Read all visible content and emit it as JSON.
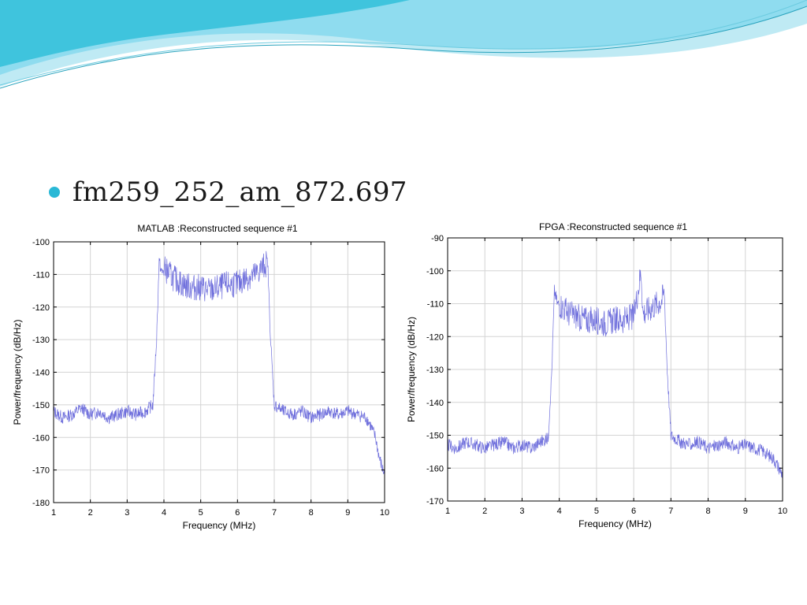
{
  "slide": {
    "bullet_text": "fm259_252_am_872.697",
    "bullet_color": "#29b8d6",
    "accent_colors": [
      "#3fc4dd",
      "#8fdcef",
      "#bfeaf4"
    ]
  },
  "chart_data": [
    {
      "type": "line",
      "title": "MATLAB :Reconstructed sequence #1",
      "xlabel": "Frequency (MHz)",
      "ylabel": "Power/frequency (dB/Hz)",
      "xlim": [
        1,
        10
      ],
      "ylim": [
        -180,
        -100
      ],
      "xticks": [
        1,
        2,
        3,
        4,
        5,
        6,
        7,
        8,
        9,
        10
      ],
      "yticks": [
        -180,
        -170,
        -160,
        -150,
        -140,
        -130,
        -120,
        -110,
        -100
      ],
      "grid": true,
      "line_color": "#6f6fdc",
      "series": [
        {
          "x": [
            1.0,
            1.25,
            1.5,
            1.75,
            2.0,
            2.25,
            2.5,
            2.75,
            3.0,
            3.25,
            3.5,
            3.7,
            3.8,
            3.87,
            3.95,
            4.0,
            4.25,
            4.5,
            4.75,
            5.0,
            5.25,
            5.5,
            5.75,
            6.0,
            6.25,
            6.5,
            6.75,
            6.82,
            6.9,
            7.0,
            7.25,
            7.5,
            7.75,
            8.0,
            8.25,
            8.5,
            8.75,
            9.0,
            9.25,
            9.5,
            9.6,
            9.75,
            9.85,
            9.95,
            10.0
          ],
          "y": [
            -152,
            -154,
            -153,
            -151,
            -153,
            -152,
            -154,
            -153,
            -152,
            -153,
            -152,
            -150,
            -130,
            -106,
            -110,
            -108,
            -111,
            -113,
            -114,
            -114,
            -115,
            -114,
            -113,
            -113,
            -111,
            -110,
            -107,
            -106,
            -130,
            -150,
            -152,
            -153,
            -152,
            -154,
            -153,
            -152,
            -153,
            -152,
            -153,
            -154,
            -156,
            -160,
            -166,
            -170,
            -171
          ]
        }
      ]
    },
    {
      "type": "line",
      "title": "FPGA :Reconstructed sequence #1",
      "xlabel": "Frequency (MHz)",
      "ylabel": "Power/frequency (dB/Hz)",
      "xlim": [
        1,
        10
      ],
      "ylim": [
        -170,
        -90
      ],
      "xticks": [
        1,
        2,
        3,
        4,
        5,
        6,
        7,
        8,
        9,
        10
      ],
      "yticks": [
        -170,
        -160,
        -150,
        -140,
        -130,
        -120,
        -110,
        -100,
        -90
      ],
      "grid": true,
      "line_color": "#6f6fdc",
      "series": [
        {
          "x": [
            1.0,
            1.25,
            1.5,
            1.75,
            2.0,
            2.25,
            2.5,
            2.75,
            3.0,
            3.25,
            3.5,
            3.7,
            3.8,
            3.87,
            3.95,
            4.0,
            4.25,
            4.5,
            4.75,
            5.0,
            5.25,
            5.5,
            5.75,
            6.0,
            6.2,
            6.25,
            6.5,
            6.75,
            6.82,
            6.9,
            7.0,
            7.25,
            7.5,
            7.75,
            8.0,
            8.25,
            8.5,
            8.75,
            9.0,
            9.25,
            9.5,
            9.6,
            9.75,
            9.85,
            9.95,
            10.0
          ],
          "y": [
            -153,
            -154,
            -152,
            -153,
            -154,
            -153,
            -152,
            -154,
            -153,
            -154,
            -152,
            -151,
            -130,
            -106,
            -110,
            -110,
            -113,
            -114,
            -115,
            -115,
            -116,
            -115,
            -115,
            -114,
            -100,
            -113,
            -111,
            -109,
            -106,
            -130,
            -150,
            -152,
            -153,
            -152,
            -154,
            -153,
            -152,
            -154,
            -153,
            -154,
            -155,
            -156,
            -157,
            -159,
            -161,
            -162
          ]
        }
      ]
    }
  ]
}
